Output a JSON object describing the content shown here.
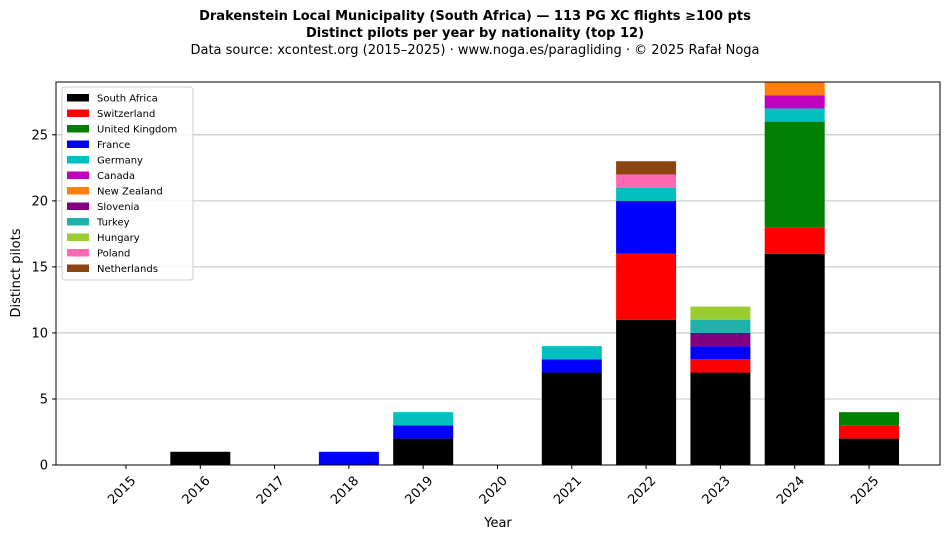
{
  "chart_data": {
    "type": "bar",
    "stacked": true,
    "title": "Drakenstein Local Municipality (South Africa)  —  113 PG XC flights ≥100 pts",
    "title_line2": "Distinct pilots per year by nationality (top 12)",
    "subtitle": "Data source: xcontest.org (2015–2025)  ·  www.noga.es/paragliding  ·  © 2025 Rafał Noga",
    "xlabel": "Year",
    "ylabel": "Distinct pilots",
    "categories": [
      "2015",
      "2016",
      "2017",
      "2018",
      "2019",
      "2020",
      "2021",
      "2022",
      "2023",
      "2024",
      "2025"
    ],
    "ylim": [
      0,
      29
    ],
    "yticks": [
      0,
      5,
      10,
      15,
      20,
      25
    ],
    "grid": "y",
    "legend_position": "top-left",
    "series": [
      {
        "name": "South Africa",
        "color": "#000000",
        "values": [
          0,
          1,
          0,
          0,
          2,
          0,
          7,
          11,
          7,
          16,
          2
        ]
      },
      {
        "name": "Switzerland",
        "color": "#ff0000",
        "values": [
          0,
          0,
          0,
          0,
          0,
          0,
          0,
          5,
          1,
          2,
          1
        ]
      },
      {
        "name": "United Kingdom",
        "color": "#008000",
        "values": [
          0,
          0,
          0,
          0,
          0,
          0,
          0,
          0,
          0,
          8,
          1
        ]
      },
      {
        "name": "France",
        "color": "#0000ff",
        "values": [
          0,
          0,
          0,
          1,
          1,
          0,
          1,
          4,
          1,
          0,
          0
        ]
      },
      {
        "name": "Germany",
        "color": "#00bfbf",
        "values": [
          0,
          0,
          0,
          0,
          1,
          0,
          1,
          1,
          0,
          1,
          0
        ]
      },
      {
        "name": "Canada",
        "color": "#bf00bf",
        "values": [
          0,
          0,
          0,
          0,
          0,
          0,
          0,
          0,
          0,
          1,
          0
        ]
      },
      {
        "name": "New Zealand",
        "color": "#ff7f0e",
        "values": [
          0,
          0,
          0,
          0,
          0,
          0,
          0,
          0,
          0,
          1,
          0
        ]
      },
      {
        "name": "Slovenia",
        "color": "#800080",
        "values": [
          0,
          0,
          0,
          0,
          0,
          0,
          0,
          0,
          1,
          0,
          0
        ]
      },
      {
        "name": "Turkey",
        "color": "#20b2aa",
        "values": [
          0,
          0,
          0,
          0,
          0,
          0,
          0,
          0,
          1,
          0,
          0
        ]
      },
      {
        "name": "Hungary",
        "color": "#9acd32",
        "values": [
          0,
          0,
          0,
          0,
          0,
          0,
          0,
          0,
          1,
          0,
          0
        ]
      },
      {
        "name": "Poland",
        "color": "#ff69b4",
        "values": [
          0,
          0,
          0,
          0,
          0,
          0,
          0,
          1,
          0,
          0,
          0
        ]
      },
      {
        "name": "Netherlands",
        "color": "#8b4513",
        "values": [
          0,
          0,
          0,
          0,
          0,
          0,
          0,
          1,
          0,
          0,
          0
        ]
      }
    ]
  }
}
